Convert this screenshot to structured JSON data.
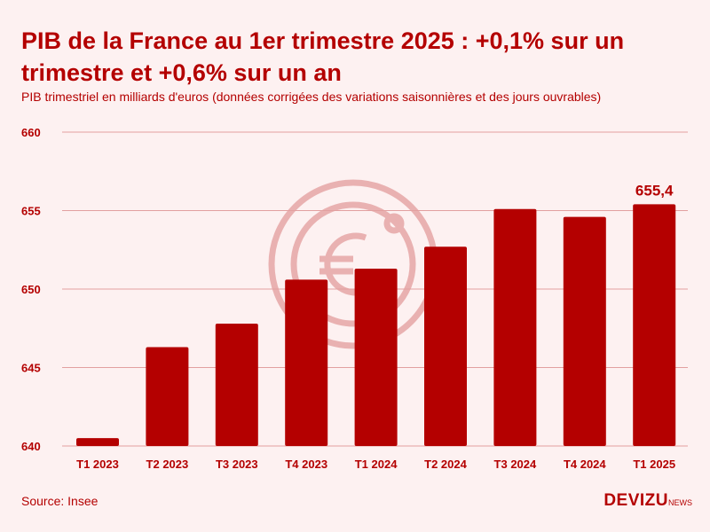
{
  "chart_data": {
    "type": "bar",
    "title": "PIB de la France au 1er trimestre 2025 : +0,1% sur un trimestre et +0,6% sur un an",
    "subtitle": "PIB trimestriel en milliards d'euros (données corrigées des variations saisonnières et des jours ouvrables)",
    "xlabel": "",
    "ylabel": "",
    "categories": [
      "T1 2023",
      "T2 2023",
      "T3 2023",
      "T4 2023",
      "T1 2024",
      "T2 2024",
      "T3 2024",
      "T4 2024",
      "T1 2025"
    ],
    "values": [
      640.5,
      646.3,
      647.8,
      650.6,
      651.3,
      652.7,
      655.1,
      654.6,
      655.4
    ],
    "ylim": [
      640,
      660
    ],
    "yticks": [
      "640",
      "645",
      "650",
      "655",
      "660"
    ],
    "grid": true,
    "annotations": [
      {
        "index": 8,
        "label": "655,4"
      }
    ],
    "colors": {
      "bar": "#b40000",
      "grid": "#e2a0a0",
      "watermark": "#e9b1b1"
    }
  },
  "footer": {
    "source": "Source: Insee",
    "brand": "DEVIZU",
    "brand_suffix": "NEWS"
  }
}
